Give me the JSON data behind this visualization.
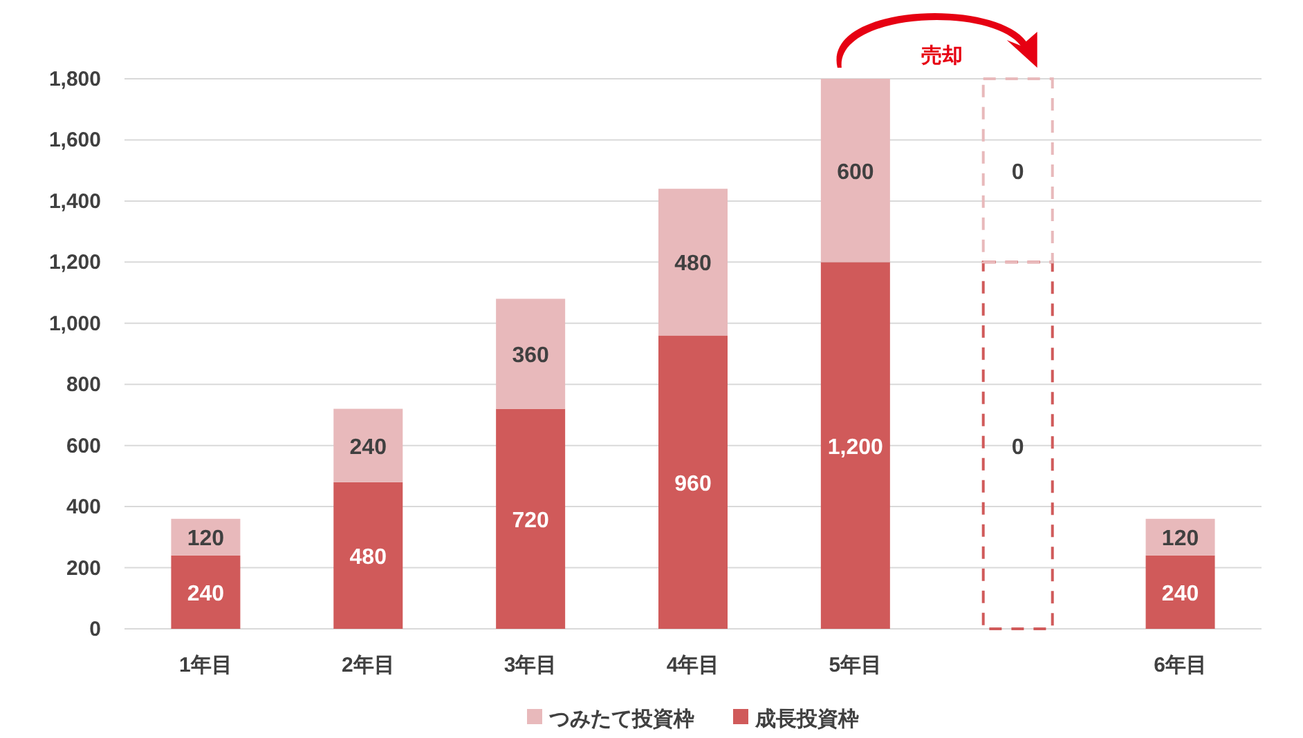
{
  "chart_data": {
    "type": "bar",
    "stacked": true,
    "categories": [
      "1年目",
      "2年目",
      "3年目",
      "4年目",
      "5年目",
      null,
      "6年目"
    ],
    "series": [
      {
        "name": "成長投資枠",
        "color": "#d05a5a",
        "values": [
          240,
          480,
          720,
          960,
          1200,
          null,
          240
        ],
        "value_labels": [
          "240",
          "480",
          "720",
          "960",
          "1,200",
          null,
          "240"
        ]
      },
      {
        "name": "つみたて投資枠",
        "color": "#e8b9bb",
        "values": [
          120,
          240,
          360,
          480,
          600,
          null,
          120
        ],
        "value_labels": [
          "120",
          "240",
          "360",
          "480",
          "600",
          null,
          "120"
        ]
      },
      {
        "color": "#d05a5a",
        "line_style": "dashed",
        "values": [
          null,
          null,
          null,
          null,
          null,
          1200,
          null
        ]
      },
      {
        "color": "#e8b9bb",
        "line_style": "dashed",
        "values": [
          null,
          null,
          null,
          null,
          null,
          600,
          null
        ]
      }
    ],
    "ylim": [
      0,
      1800
    ],
    "yticks": [
      0,
      200,
      400,
      600,
      800,
      {
        "value": 1000,
        "label": "1,000"
      },
      {
        "value": 1200,
        "label": "1,200"
      },
      {
        "value": 1400,
        "label": "1,400"
      },
      {
        "value": 1600,
        "label": "1,600"
      },
      {
        "value": 1800,
        "label": "1,800"
      }
    ],
    "grid": "y",
    "legend": "bottom",
    "annotations": [
      "売却",
      "0",
      "0"
    ]
  }
}
